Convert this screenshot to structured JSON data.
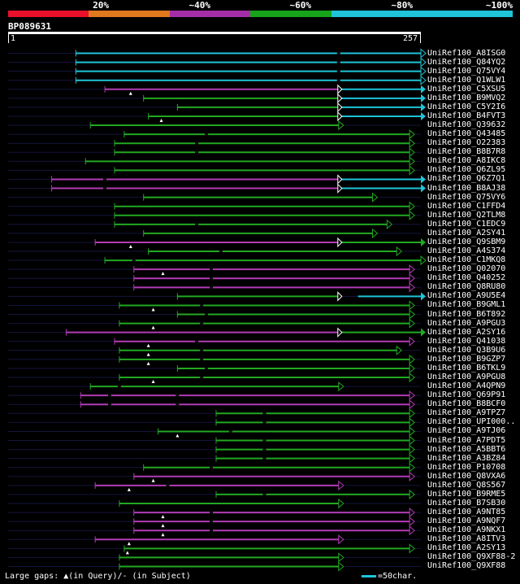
{
  "scale": {
    "labels": [
      "20%",
      "~40%",
      "~60%",
      "~80%",
      "~100%"
    ],
    "colors": [
      "#e8102a",
      "#e0781e",
      "#a42ea8",
      "#17a31a",
      "#1fc4d8"
    ]
  },
  "query": {
    "name": "BP089631",
    "start": "1",
    "end": "257"
  },
  "colors": {
    "cyan": "#1fc4d8",
    "green": "#22a822",
    "magenta": "#b13cb5",
    "navy": "#14143c"
  },
  "hits": [
    {
      "name": "UniRef100_A8ISG0",
      "color": "cyan",
      "start": 43,
      "end": 257,
      "gaps": [
        206
      ],
      "tri": []
    },
    {
      "name": "UniRef100_Q84YQ2",
      "color": "cyan",
      "start": 43,
      "end": 257,
      "gaps": [
        206
      ],
      "tri": []
    },
    {
      "name": "UniRef100_Q75VY4",
      "color": "cyan",
      "start": 43,
      "end": 257,
      "gaps": [
        206
      ],
      "tri": []
    },
    {
      "name": "UniRef100_Q1WLW1",
      "color": "cyan",
      "start": 43,
      "end": 257,
      "gaps": [
        206
      ],
      "tri": []
    },
    {
      "name": "UniRef100_C5XSU5",
      "color": "magenta",
      "start": 61,
      "end": 206,
      "gaps": [],
      "tri": [
        77
      ],
      "cont": {
        "color": "cyan",
        "start": 206,
        "end": 257
      }
    },
    {
      "name": "UniRef100_B9MVQ2",
      "color": "green",
      "start": 85,
      "end": 206,
      "gaps": [],
      "tri": [],
      "cont": {
        "color": "cyan",
        "start": 206,
        "end": 257
      }
    },
    {
      "name": "UniRef100_C5Y2I6",
      "color": "green",
      "start": 106,
      "end": 206,
      "gaps": [],
      "tri": [],
      "cont": {
        "color": "cyan",
        "start": 206,
        "end": 257
      }
    },
    {
      "name": "UniRef100_B4FVT3",
      "color": "green",
      "start": 88,
      "end": 206,
      "gaps": [],
      "tri": [
        96
      ],
      "cont": {
        "color": "cyan",
        "start": 206,
        "end": 257
      }
    },
    {
      "name": "UniRef100_Q39632",
      "color": "green",
      "start": 52,
      "end": 206,
      "gaps": [],
      "tri": []
    },
    {
      "name": "UniRef100_Q43485",
      "color": "green",
      "start": 73,
      "end": 250,
      "gaps": [
        124
      ],
      "tri": []
    },
    {
      "name": "UniRef100_O22383",
      "color": "green",
      "start": 67,
      "end": 250,
      "gaps": [
        118
      ],
      "tri": []
    },
    {
      "name": "UniRef100_B8B7R8",
      "color": "green",
      "start": 67,
      "end": 250,
      "gaps": [
        118
      ],
      "tri": []
    },
    {
      "name": "UniRef100_A8IKC8",
      "color": "green",
      "start": 49,
      "end": 250,
      "gaps": [],
      "tri": []
    },
    {
      "name": "UniRef100_Q6ZL95",
      "color": "green",
      "start": 67,
      "end": 250,
      "gaps": [],
      "tri": []
    },
    {
      "name": "UniRef100_Q6Z7Q1",
      "color": "magenta",
      "start": 28,
      "end": 206,
      "gaps": [
        61
      ],
      "tri": [],
      "cont": {
        "color": "cyan",
        "start": 206,
        "end": 257
      }
    },
    {
      "name": "UniRef100_B8AJ38",
      "color": "magenta",
      "start": 28,
      "end": 206,
      "gaps": [
        61
      ],
      "tri": [],
      "cont": {
        "color": "cyan",
        "start": 206,
        "end": 257
      }
    },
    {
      "name": "UniRef100_Q75VY6",
      "color": "green",
      "start": 85,
      "end": 227,
      "gaps": [],
      "tri": []
    },
    {
      "name": "UniRef100_C1FFD4",
      "color": "green",
      "start": 67,
      "end": 250,
      "gaps": [],
      "tri": []
    },
    {
      "name": "UniRef100_Q2TLM8",
      "color": "green",
      "start": 67,
      "end": 250,
      "gaps": [],
      "tri": []
    },
    {
      "name": "UniRef100_C1EDC9",
      "color": "green",
      "start": 67,
      "end": 236,
      "gaps": [
        118
      ],
      "tri": []
    },
    {
      "name": "UniRef100_A2SY41",
      "color": "green",
      "start": 85,
      "end": 227,
      "gaps": [],
      "tri": []
    },
    {
      "name": "UniRef100_Q9SBM9",
      "color": "magenta",
      "start": 55,
      "end": 206,
      "gaps": [],
      "tri": [
        77
      ],
      "cont": {
        "color": "green",
        "start": 206,
        "end": 257
      }
    },
    {
      "name": "UniRef100_A4S374",
      "color": "green",
      "start": 88,
      "end": 242,
      "gaps": [
        133
      ],
      "tri": []
    },
    {
      "name": "UniRef100_C1MKQ8",
      "color": "green",
      "start": 61,
      "end": 257,
      "gaps": [
        79
      ],
      "tri": []
    },
    {
      "name": "UniRef100_Q02070",
      "color": "magenta",
      "start": 79,
      "end": 250,
      "gaps": [
        127
      ],
      "tri": [
        97
      ]
    },
    {
      "name": "UniRef100_Q40252",
      "color": "magenta",
      "start": 79,
      "end": 250,
      "gaps": [
        127
      ],
      "tri": []
    },
    {
      "name": "UniRef100_Q8RU80",
      "color": "magenta",
      "start": 79,
      "end": 250,
      "gaps": [
        127
      ],
      "tri": []
    },
    {
      "name": "UniRef100_A9U5E4",
      "color": "green",
      "start": 106,
      "end": 206,
      "gaps": [],
      "tri": [],
      "cont": {
        "color": "cyan",
        "start": 218,
        "end": 257
      }
    },
    {
      "name": "UniRef100_B9GML1",
      "color": "green",
      "start": 70,
      "end": 250,
      "gaps": [
        121
      ],
      "tri": [
        91
      ]
    },
    {
      "name": "UniRef100_B6T892",
      "color": "green",
      "start": 106,
      "end": 250,
      "gaps": [
        124
      ],
      "tri": []
    },
    {
      "name": "UniRef100_A9PGU3",
      "color": "green",
      "start": 70,
      "end": 250,
      "gaps": [
        121
      ],
      "tri": [
        91
      ]
    },
    {
      "name": "UniRef100_A2SY16",
      "color": "magenta",
      "start": 37,
      "end": 206,
      "gaps": [],
      "tri": [],
      "cont": {
        "color": "green",
        "start": 206,
        "end": 257
      }
    },
    {
      "name": "UniRef100_Q41038",
      "color": "magenta",
      "start": 67,
      "end": 250,
      "gaps": [
        118
      ],
      "tri": [
        88
      ]
    },
    {
      "name": "UniRef100_Q3B9U6",
      "color": "green",
      "start": 70,
      "end": 242,
      "gaps": [
        121
      ],
      "tri": [
        88
      ]
    },
    {
      "name": "UniRef100_B9GZP7",
      "color": "green",
      "start": 70,
      "end": 250,
      "gaps": [
        121
      ],
      "tri": [
        88
      ]
    },
    {
      "name": "UniRef100_B6TKL9",
      "color": "green",
      "start": 106,
      "end": 250,
      "gaps": [
        124
      ],
      "tri": []
    },
    {
      "name": "UniRef100_A9PGU8",
      "color": "green",
      "start": 70,
      "end": 250,
      "gaps": [
        121
      ],
      "tri": [
        91
      ]
    },
    {
      "name": "UniRef100_A4QPN9",
      "color": "green",
      "start": 52,
      "end": 206,
      "gaps": [
        70
      ],
      "tri": []
    },
    {
      "name": "UniRef100_Q69P91",
      "color": "magenta",
      "start": 46,
      "end": 250,
      "gaps": [
        64,
        106
      ],
      "tri": []
    },
    {
      "name": "UniRef100_B8BCF0",
      "color": "magenta",
      "start": 46,
      "end": 250,
      "gaps": [
        64,
        106
      ],
      "tri": []
    },
    {
      "name": "UniRef100_A9TPZ7",
      "color": "green",
      "start": 130,
      "end": 250,
      "gaps": [
        160
      ],
      "tri": []
    },
    {
      "name": "UniRef100_UPI000..",
      "color": "green",
      "start": 130,
      "end": 250,
      "gaps": [
        160
      ],
      "tri": []
    },
    {
      "name": "UniRef100_A9TJ06",
      "color": "green",
      "start": 94,
      "end": 250,
      "gaps": [
        139
      ],
      "tri": [
        106
      ]
    },
    {
      "name": "UniRef100_A7PDT5",
      "color": "green",
      "start": 130,
      "end": 250,
      "gaps": [
        160
      ],
      "tri": []
    },
    {
      "name": "UniRef100_A5BBT6",
      "color": "green",
      "start": 130,
      "end": 250,
      "gaps": [
        160
      ],
      "tri": []
    },
    {
      "name": "UniRef100_A3BZ84",
      "color": "green",
      "start": 130,
      "end": 250,
      "gaps": [
        160
      ],
      "tri": []
    },
    {
      "name": "UniRef100_P10708",
      "color": "green",
      "start": 85,
      "end": 250,
      "gaps": [
        127
      ],
      "tri": []
    },
    {
      "name": "UniRef100_Q8VXA6",
      "color": "magenta",
      "start": 79,
      "end": 250,
      "gaps": [],
      "tri": [
        91
      ]
    },
    {
      "name": "UniRef100_Q8S567",
      "color": "magenta",
      "start": 55,
      "end": 206,
      "gaps": [
        100
      ],
      "tri": [
        76
      ]
    },
    {
      "name": "UniRef100_B9RME5",
      "color": "green",
      "start": 130,
      "end": 250,
      "gaps": [
        160
      ],
      "tri": []
    },
    {
      "name": "UniRef100_B7SB30",
      "color": "green",
      "start": 70,
      "end": 206,
      "gaps": [],
      "tri": []
    },
    {
      "name": "UniRef100_A9NT85",
      "color": "magenta",
      "start": 79,
      "end": 250,
      "gaps": [
        127
      ],
      "tri": [
        97
      ]
    },
    {
      "name": "UniRef100_A9NQF7",
      "color": "magenta",
      "start": 79,
      "end": 250,
      "gaps": [
        127
      ],
      "tri": [
        97
      ]
    },
    {
      "name": "UniRef100_A9NKX1",
      "color": "magenta",
      "start": 79,
      "end": 250,
      "gaps": [
        127
      ],
      "tri": [
        97
      ]
    },
    {
      "name": "UniRef100_A8ITV3",
      "color": "magenta",
      "start": 55,
      "end": 206,
      "gaps": [],
      "tri": [
        76
      ]
    },
    {
      "name": "UniRef100_A2SY13",
      "color": "green",
      "start": 73,
      "end": 250,
      "gaps": [],
      "tri": [
        75
      ]
    },
    {
      "name": "UniRef100_Q9XF88-2",
      "color": "green",
      "start": 70,
      "end": 206,
      "gaps": [],
      "tri": []
    },
    {
      "name": "UniRef100_Q9XF88",
      "color": "green",
      "start": 70,
      "end": 206,
      "gaps": [],
      "tri": []
    }
  ],
  "legend": {
    "text": "Large gaps: ▲(in Query)/- (in Subject)",
    "scale_text": "=50char."
  }
}
